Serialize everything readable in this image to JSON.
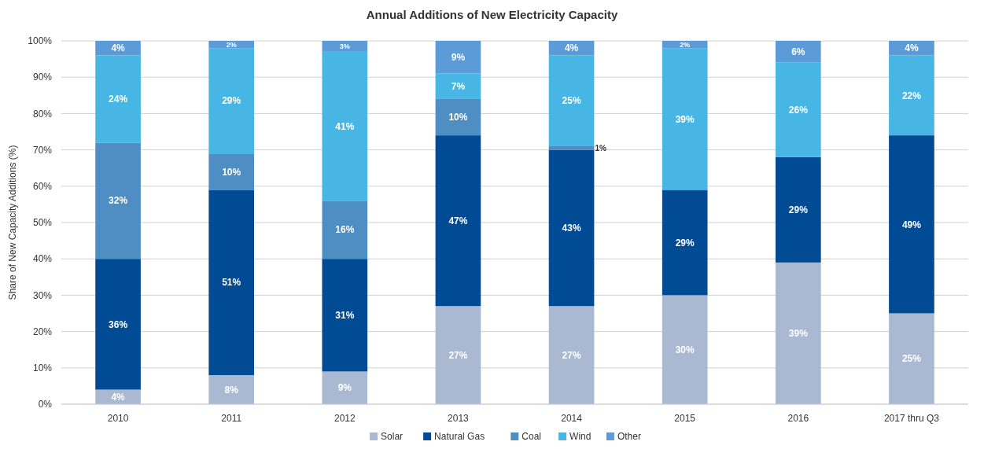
{
  "chart_data": {
    "type": "bar",
    "title": "Annual Additions of New Electricity Capacity",
    "ylabel": "Share of New Capacity Additions (%)",
    "categories": [
      "2010",
      "2011",
      "2012",
      "2013",
      "2014",
      "2015",
      "2016",
      "2017 thru Q3"
    ],
    "stacked": true,
    "grid": "y",
    "legend": "bottom",
    "ylim": [
      0,
      100
    ],
    "yticks": [
      {
        "value": 0,
        "label": "0%"
      },
      {
        "value": 10,
        "label": "10%"
      },
      {
        "value": 20,
        "label": "20%"
      },
      {
        "value": 30,
        "label": "30%"
      },
      {
        "value": 40,
        "label": "40%"
      },
      {
        "value": 50,
        "label": "50%"
      },
      {
        "value": 60,
        "label": "60%"
      },
      {
        "value": 70,
        "label": "70%"
      },
      {
        "value": 80,
        "label": "80%"
      },
      {
        "value": 90,
        "label": "90%"
      },
      {
        "value": 100,
        "label": "100%"
      }
    ],
    "series": [
      {
        "name": "Solar",
        "color": "#aab8d2",
        "values": [
          4,
          8,
          9,
          27,
          27,
          30,
          39,
          25
        ],
        "value_labels": [
          "4%",
          "8%",
          "9%",
          "27%",
          "27%",
          "30%",
          "39%",
          "25%"
        ]
      },
      {
        "name": "Natural Gas",
        "color": "#004b93",
        "values": [
          36,
          51,
          31,
          47,
          43,
          29,
          29,
          49
        ],
        "value_labels": [
          "36%",
          "51%",
          "31%",
          "47%",
          "43%",
          "29%",
          "29%",
          "49%"
        ]
      },
      {
        "name": "Coal",
        "color": "#4f8ec3",
        "values": [
          32,
          10,
          16,
          10,
          1,
          null,
          null,
          null
        ],
        "value_labels": [
          "32%",
          "10%",
          "16%",
          "10%",
          "1%",
          null,
          null,
          null
        ]
      },
      {
        "name": "Wind",
        "color": "#48b6e4",
        "values": [
          24,
          29,
          41,
          7,
          25,
          39,
          26,
          22
        ],
        "value_labels": [
          "24%",
          "29%",
          "41%",
          "7%",
          "25%",
          "39%",
          "26%",
          "22%"
        ]
      },
      {
        "name": "Other",
        "color": "#5b9bd8",
        "values": [
          4,
          2,
          3,
          9,
          4,
          2,
          6,
          4
        ],
        "value_labels": [
          "4%",
          "2%",
          "3%",
          "9%",
          "4%",
          "2%",
          "6%",
          "4%"
        ]
      }
    ]
  }
}
